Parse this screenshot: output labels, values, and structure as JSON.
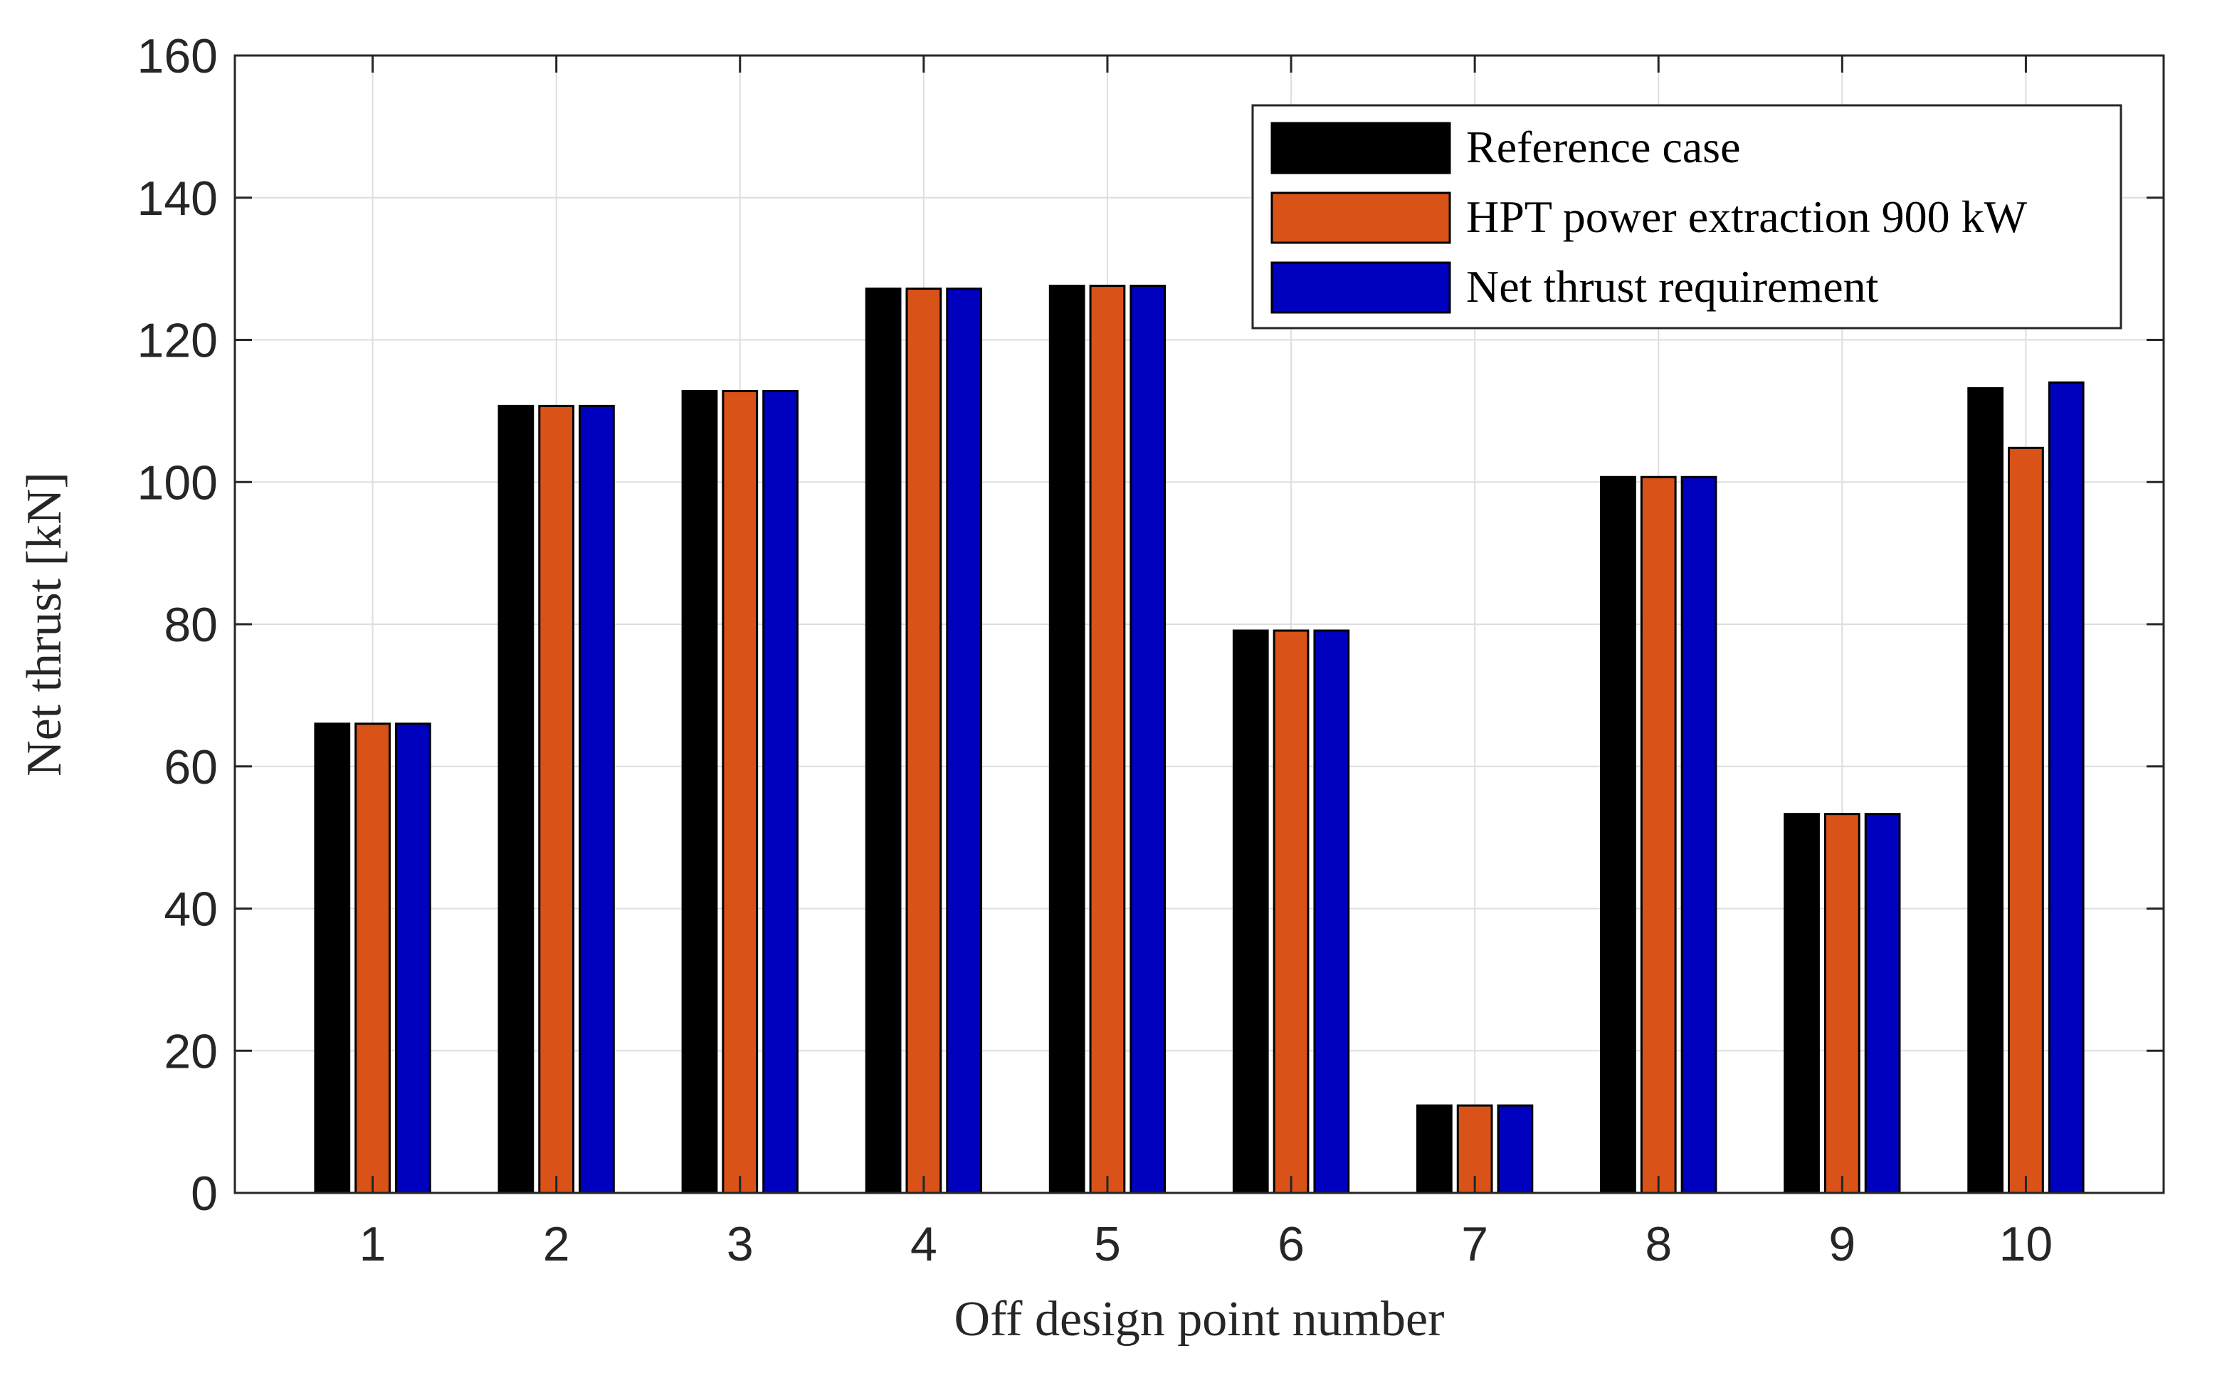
{
  "chart_data": {
    "type": "bar",
    "xlabel": "Off design point number",
    "ylabel": "Net thrust [kN]",
    "ylim": [
      0,
      160
    ],
    "yticks": [
      0,
      20,
      40,
      60,
      80,
      100,
      120,
      140,
      160
    ],
    "categories": [
      "1",
      "2",
      "3",
      "4",
      "5",
      "6",
      "7",
      "8",
      "9",
      "10"
    ],
    "grid": true,
    "legend_position": "top-right",
    "series": [
      {
        "name": "Reference case",
        "color": "#000000",
        "values": [
          66,
          110.7,
          112.8,
          127.2,
          127.6,
          79.1,
          12.3,
          100.7,
          53.3,
          113.2
        ]
      },
      {
        "name": "HPT power extraction 900 kW",
        "color": "#D95319",
        "values": [
          66,
          110.7,
          112.8,
          127.2,
          127.6,
          79.1,
          12.3,
          100.7,
          53.3,
          104.8
        ]
      },
      {
        "name": "Net thrust requirement",
        "color": "#0000BF",
        "values": [
          66,
          110.7,
          112.8,
          127.2,
          127.6,
          79.1,
          12.3,
          100.7,
          53.3,
          114.0
        ]
      }
    ]
  }
}
